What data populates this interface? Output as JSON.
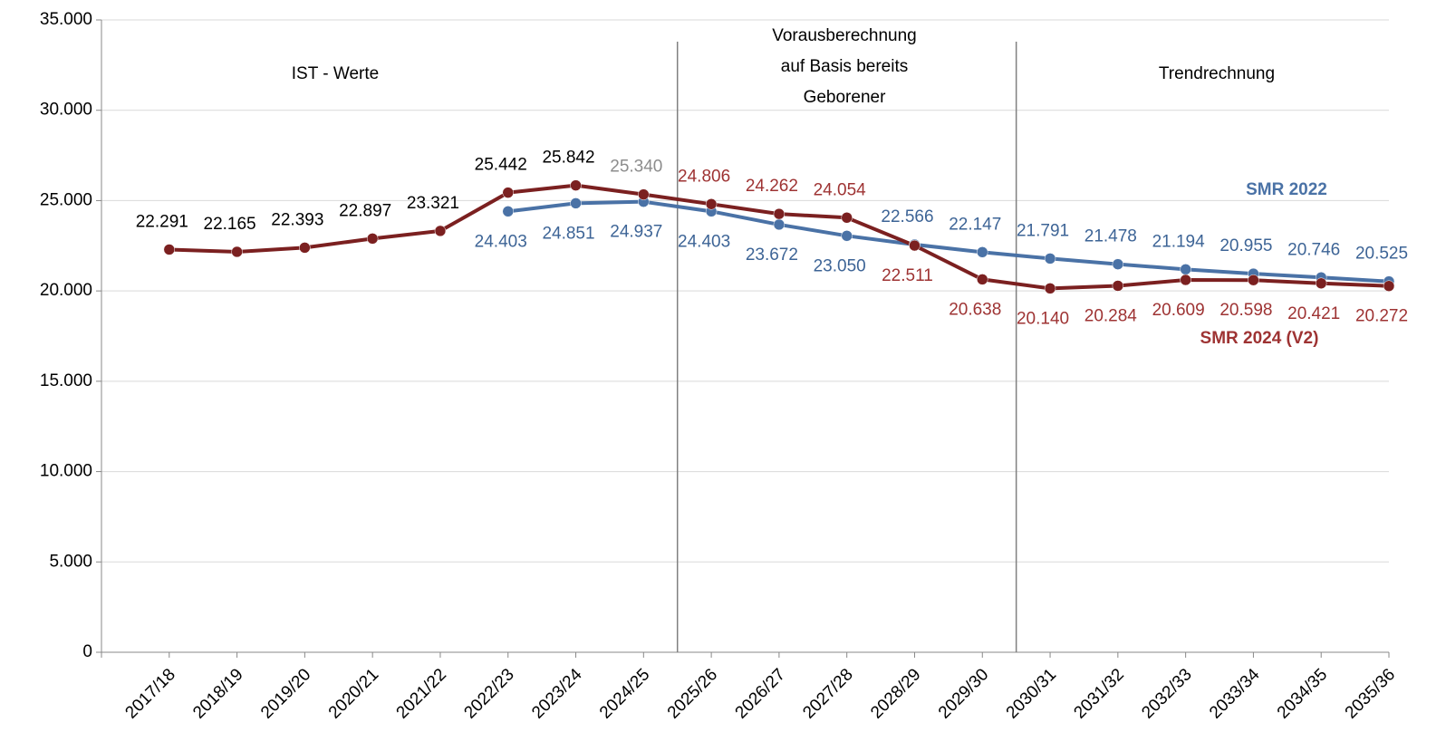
{
  "chart_data": {
    "type": "line",
    "categories": [
      "2017/18",
      "2018/19",
      "2019/20",
      "2020/21",
      "2021/22",
      "2022/23",
      "2023/24",
      "2024/25",
      "2025/26",
      "2026/27",
      "2027/28",
      "2028/29",
      "2029/30",
      "2030/31",
      "2031/32",
      "2032/33",
      "2033/34",
      "2034/35",
      "2035/36"
    ],
    "series": [
      {
        "name": "SMR 2022",
        "color": "#4a72a6",
        "values": [
          null,
          null,
          null,
          null,
          null,
          24403,
          24851,
          24937,
          24403,
          23672,
          23050,
          22566,
          22147,
          21791,
          21478,
          21194,
          20955,
          20746,
          20525
        ],
        "value_labels": [
          null,
          null,
          null,
          null,
          null,
          "24.403",
          "24.851",
          "24.937",
          "24.403",
          "23.672",
          "23.050",
          "22.566",
          "22.147",
          "21.791",
          "21.478",
          "21.194",
          "20.955",
          "20.746",
          "20.525"
        ],
        "value_label_colors": [
          "#3d6496"
        ]
      },
      {
        "name": "SMR 2024 (V2)",
        "color": "#7b2020",
        "values": [
          22291,
          22165,
          22393,
          22897,
          23321,
          25442,
          25842,
          25340,
          24806,
          24262,
          24054,
          22511,
          20638,
          20140,
          20284,
          20609,
          20598,
          20421,
          20272
        ],
        "value_labels": [
          "22.291",
          "22.165",
          "22.393",
          "22.897",
          "23.321",
          "25.442",
          "25.842",
          "25.340",
          "24.806",
          "24.262",
          "24.054",
          "22.511",
          "20.638",
          "20.140",
          "20.284",
          "20.609",
          "20.598",
          "20.421",
          "20.272"
        ],
        "value_label_colors": [
          "#000000",
          "#000000",
          "#000000",
          "#000000",
          "#000000",
          "#000000",
          "#000000",
          "#8c8c8c",
          "#9e3333"
        ]
      }
    ],
    "annotations": [
      [
        "IST - Werte"
      ],
      [
        "Vorausberechnung",
        "auf Basis bereits",
        "Geborener"
      ],
      [
        "Trendrechnung"
      ]
    ],
    "ylim": [
      0,
      35000
    ],
    "yticks": [
      0,
      {
        "value": 5000,
        "label": "5.000"
      },
      {
        "value": 10000,
        "label": "10.000"
      },
      {
        "value": 15000,
        "label": "15.000"
      },
      {
        "value": 20000,
        "label": "20.000"
      },
      {
        "value": 25000,
        "label": "25.000"
      },
      {
        "value": 30000,
        "label": "30.000"
      },
      {
        "value": 35000,
        "label": "35.000"
      }
    ],
    "grid": true
  }
}
